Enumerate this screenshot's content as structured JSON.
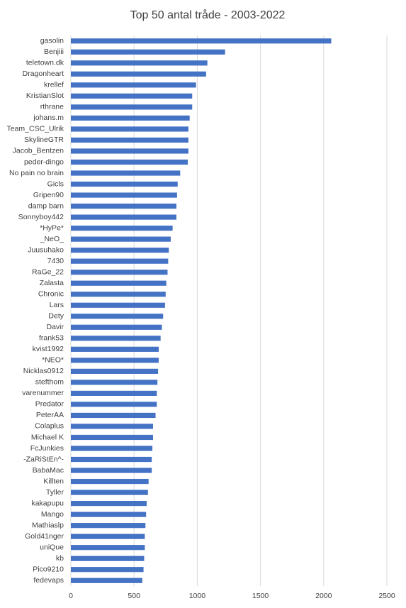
{
  "chart_data": {
    "type": "barh",
    "title": "Top 50 antal tråde - 2003-2022",
    "categories": [
      "gasolin",
      "Benjiii",
      "teletown.dk",
      "Dragonheart",
      "krellef",
      "KristianSlot",
      "rthrane",
      "johans.m",
      "Team_CSC_Ulrik",
      "SkylineGTR",
      "Jacob_Bentzen",
      "peder-dingo",
      "No pain no brain",
      "Gicls",
      "Gripen90",
      "damp barn",
      "Sonnyboy442",
      "*HyPe*",
      "_NeO_",
      "Juusuhako",
      "7430",
      "RaGe_22",
      "Zalasta",
      "Chronic",
      "Lars",
      "Dety",
      "Davir",
      "frank53",
      "kvist1992",
      "*NEO*",
      "Nicklas0912",
      "stefthom",
      "varenummer",
      "Predator",
      "PeterAA",
      "Colaplus",
      "Michael K",
      "FcJunkies",
      "-ZaRiStEn^-",
      "BabaMac",
      "Killten",
      "Tyller",
      "kakapupu",
      "Mango",
      "Mathiaslp",
      "Gold41nger",
      "uniQue",
      "kb",
      "Pico9210",
      "fedevaps"
    ],
    "values": [
      2060,
      1220,
      1080,
      1070,
      990,
      960,
      960,
      940,
      930,
      930,
      930,
      925,
      865,
      845,
      840,
      835,
      835,
      805,
      790,
      775,
      770,
      765,
      755,
      750,
      745,
      730,
      720,
      710,
      695,
      695,
      690,
      685,
      680,
      680,
      670,
      650,
      650,
      645,
      640,
      640,
      615,
      610,
      600,
      595,
      590,
      585,
      585,
      580,
      575,
      565
    ],
    "color": "#4472c4",
    "xlim": [
      0,
      2500
    ],
    "xticks": [
      0,
      500,
      1000,
      1500,
      2000,
      2500
    ],
    "grid": true
  }
}
